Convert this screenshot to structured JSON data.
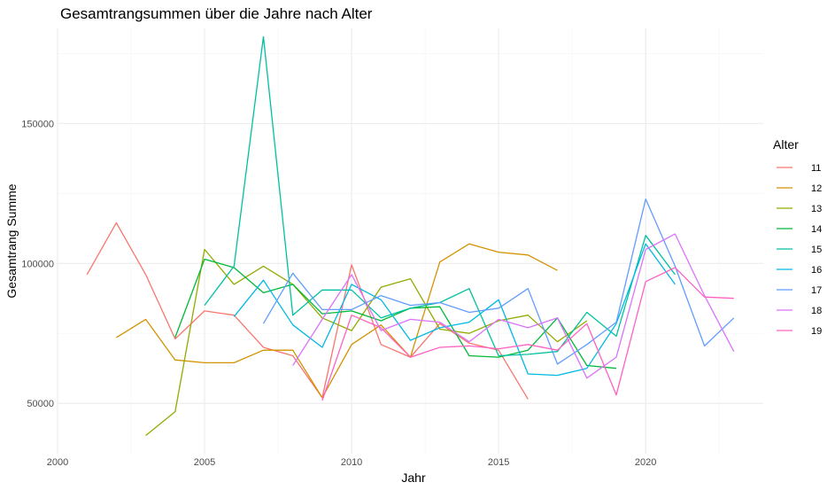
{
  "chart_data": {
    "type": "line",
    "title": "Gesamtrangsummen über die Jahre nach Alter",
    "xlabel": "Jahr",
    "ylabel": "Gesamtrang Summe",
    "xlim": [
      2000,
      2024
    ],
    "ylim": [
      32000,
      184000
    ],
    "x_ticks": [
      2000,
      2005,
      2010,
      2015,
      2020
    ],
    "x_tick_labels": [
      "2000",
      "2005",
      "2010",
      "2015",
      "2020"
    ],
    "y_ticks": [
      50000,
      100000,
      150000
    ],
    "y_tick_labels": [
      "50000",
      "100000",
      "150000"
    ],
    "grid": true,
    "legend_title": "Alter",
    "legend_position": "right",
    "series": [
      {
        "name": "11",
        "color": "#F8766D",
        "x": [
          2001,
          2002,
          2003,
          2004,
          2005,
          2006,
          2007,
          2008,
          2009,
          2010,
          2011,
          2012,
          2013,
          2014,
          2015,
          2016
        ],
        "y": [
          96000,
          114500,
          96000,
          73000,
          83000,
          81500,
          70000,
          67000,
          52000,
          99500,
          71000,
          66500,
          78500,
          71500,
          69000,
          51500
        ]
      },
      {
        "name": "12",
        "color": "#D39200",
        "x": [
          2002,
          2003,
          2004,
          2005,
          2006,
          2007,
          2008,
          2009,
          2010,
          2011,
          2012,
          2013,
          2014,
          2015,
          2016,
          2017
        ],
        "y": [
          73500,
          80000,
          65500,
          64500,
          64500,
          69000,
          69000,
          52000,
          71000,
          78000,
          66500,
          100500,
          107000,
          104000,
          103000,
          97500
        ]
      },
      {
        "name": "13",
        "color": "#93AA00",
        "x": [
          2003,
          2004,
          2005,
          2006,
          2007,
          2008,
          2009,
          2010,
          2011,
          2012,
          2013,
          2014,
          2015,
          2016,
          2017,
          2018
        ],
        "y": [
          38500,
          47000,
          105000,
          92500,
          99000,
          92500,
          80500,
          76000,
          91500,
          94500,
          76500,
          75000,
          79500,
          81500,
          72000,
          79500
        ]
      },
      {
        "name": "14",
        "color": "#00BA38",
        "x": [
          2004,
          2005,
          2006,
          2007,
          2008,
          2009,
          2010,
          2011,
          2012,
          2013,
          2014,
          2015,
          2016,
          2017,
          2018,
          2019
        ],
        "y": [
          73500,
          101500,
          98500,
          89500,
          92500,
          82000,
          83000,
          79500,
          84000,
          84500,
          67000,
          66500,
          69000,
          80500,
          63500,
          62500
        ]
      },
      {
        "name": "15",
        "color": "#00C19F",
        "x": [
          2005,
          2006,
          2007,
          2008,
          2009,
          2010,
          2011,
          2012,
          2013,
          2014,
          2015,
          2016,
          2017,
          2018,
          2019,
          2020,
          2021
        ],
        "y": [
          85000,
          99000,
          181000,
          81500,
          90500,
          90500,
          80500,
          84000,
          86000,
          91000,
          67000,
          67500,
          68500,
          82500,
          74000,
          110000,
          96000
        ]
      },
      {
        "name": "16",
        "color": "#00B9E3",
        "x": [
          2006,
          2007,
          2008,
          2009,
          2010,
          2011,
          2012,
          2013,
          2014,
          2015,
          2016,
          2017,
          2018,
          2019,
          2020,
          2021
        ],
        "y": [
          81000,
          94000,
          78000,
          70000,
          92500,
          87000,
          72500,
          77000,
          79000,
          87000,
          60500,
          60000,
          62500,
          78500,
          107000,
          92500
        ]
      },
      {
        "name": "17",
        "color": "#619CFF",
        "x": [
          2007,
          2008,
          2009,
          2010,
          2011,
          2012,
          2013,
          2014,
          2015,
          2016,
          2017,
          2018,
          2019,
          2020,
          2021,
          2022,
          2023
        ],
        "y": [
          78500,
          96500,
          83500,
          83500,
          88500,
          85000,
          86000,
          82500,
          84000,
          91000,
          64000,
          71000,
          79000,
          123000,
          99000,
          70500,
          80500
        ]
      },
      {
        "name": "18",
        "color": "#DB72FB",
        "x": [
          2008,
          2009,
          2010,
          2011,
          2012,
          2013,
          2014,
          2015,
          2016,
          2017,
          2018,
          2019,
          2020,
          2021,
          2022,
          2023
        ],
        "y": [
          63500,
          80000,
          96000,
          76000,
          80000,
          79000,
          72000,
          80000,
          77000,
          80500,
          59000,
          66500,
          105000,
          110500,
          88500,
          68500
        ]
      },
      {
        "name": "19",
        "color": "#FF61C3",
        "x": [
          2009,
          2010,
          2011,
          2012,
          2013,
          2014,
          2015,
          2016,
          2017,
          2018,
          2019,
          2020,
          2021,
          2022,
          2023
        ],
        "y": [
          51000,
          81500,
          77000,
          66500,
          70000,
          70500,
          69500,
          71000,
          69000,
          78500,
          53000,
          93500,
          98500,
          88000,
          87500
        ]
      }
    ]
  }
}
